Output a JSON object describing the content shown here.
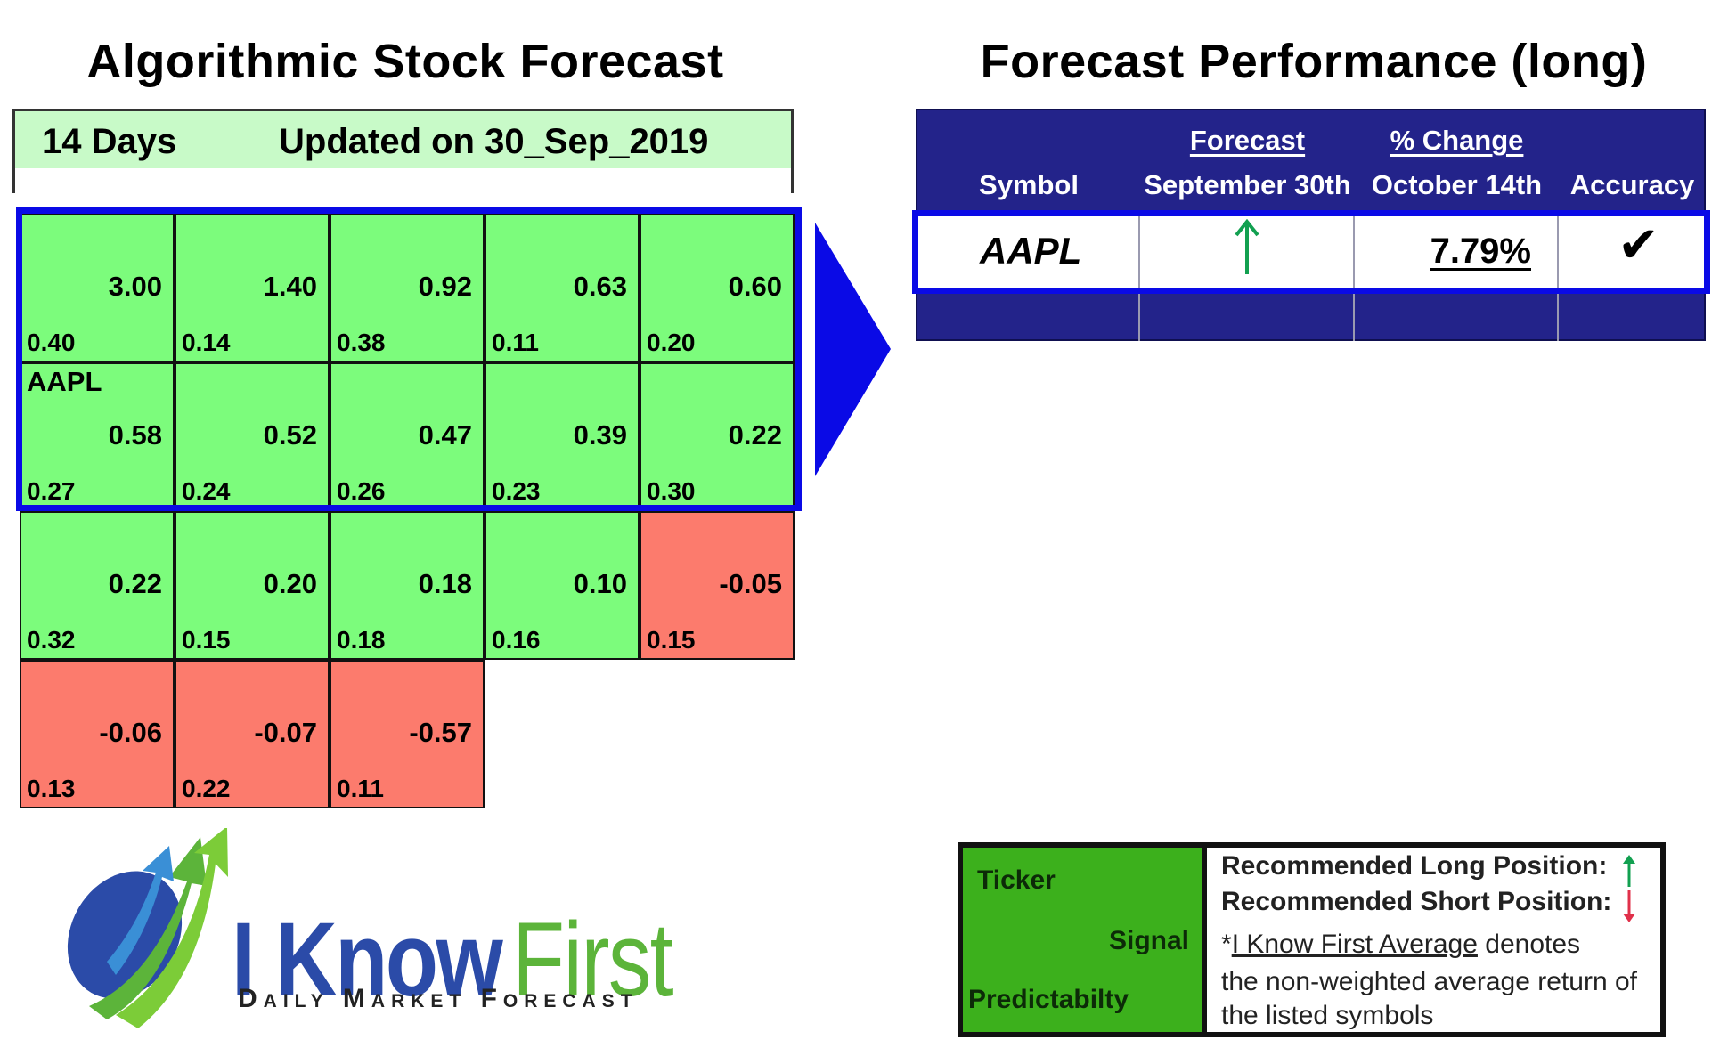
{
  "left_panel": {
    "title": "Algorithmic Stock Forecast",
    "horizon": "14 Days",
    "updated": "Updated on 30_Sep_2019",
    "grid": [
      [
        {
          "signal": "3.00",
          "predictability": "0.40",
          "type": "pos"
        },
        {
          "signal": "1.40",
          "predictability": "0.14",
          "type": "pos"
        },
        {
          "signal": "0.92",
          "predictability": "0.38",
          "type": "pos"
        },
        {
          "signal": "0.63",
          "predictability": "0.11",
          "type": "pos"
        },
        {
          "signal": "0.60",
          "predictability": "0.20",
          "type": "pos"
        }
      ],
      [
        {
          "ticker": "AAPL",
          "signal": "0.58",
          "predictability": "0.27",
          "type": "pos"
        },
        {
          "signal": "0.52",
          "predictability": "0.24",
          "type": "pos"
        },
        {
          "signal": "0.47",
          "predictability": "0.26",
          "type": "pos"
        },
        {
          "signal": "0.39",
          "predictability": "0.23",
          "type": "pos"
        },
        {
          "signal": "0.22",
          "predictability": "0.30",
          "type": "pos"
        }
      ],
      [
        {
          "signal": "0.22",
          "predictability": "0.32",
          "type": "pos"
        },
        {
          "signal": "0.20",
          "predictability": "0.15",
          "type": "pos"
        },
        {
          "signal": "0.18",
          "predictability": "0.18",
          "type": "pos"
        },
        {
          "signal": "0.10",
          "predictability": "0.16",
          "type": "pos"
        },
        {
          "signal": "-0.05",
          "predictability": "0.15",
          "type": "neg"
        }
      ],
      [
        {
          "signal": "-0.06",
          "predictability": "0.13",
          "type": "neg"
        },
        {
          "signal": "-0.07",
          "predictability": "0.22",
          "type": "neg"
        },
        {
          "signal": "-0.57",
          "predictability": "0.11",
          "type": "neg"
        }
      ]
    ]
  },
  "right_panel": {
    "title": "Forecast Performance (long)",
    "headers": {
      "symbol": "Symbol",
      "forecast_top": "Forecast",
      "forecast_date": "September 30th",
      "change_top": "% Change",
      "change_date": "October 14th",
      "accuracy": "Accuracy"
    },
    "rows": [
      {
        "symbol": "AAPL",
        "forecast_icon": "up-arrow-icon",
        "change": "7.79%",
        "accuracy_icon": "checkmark-icon",
        "accuracy_glyph": "✔"
      }
    ]
  },
  "logo": {
    "word1": "I Know",
    "word2": "First",
    "tagline": "Daily Market Forecast"
  },
  "legend": {
    "ticker": "Ticker",
    "signal": "Signal",
    "predictability": "Predictabilty",
    "long_label": "Recommended Long Position:",
    "short_label": "Recommended Short Position:",
    "avg_prefix": "*",
    "avg_link": "I Know First Average",
    "avg_rest": " denotes",
    "line2": "the non-weighted average return of",
    "line3": "the listed symbols"
  },
  "colors": {
    "positive_cell": "#7cfc7c",
    "negative_cell": "#fc7b6d",
    "highlight_border": "#0a0ae6",
    "table_header": "#23238a",
    "up_arrow": "#12a050",
    "down_arrow": "#e0304a"
  }
}
